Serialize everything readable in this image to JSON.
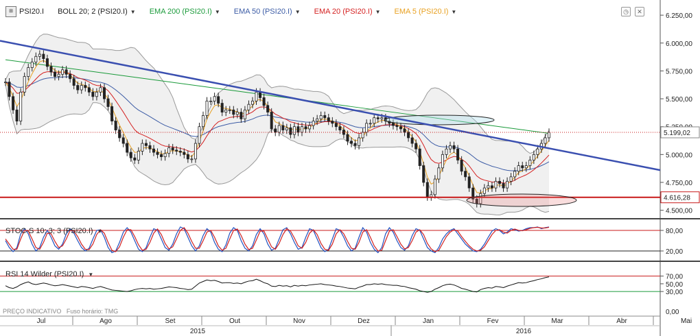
{
  "toolbar": {
    "symbol": "PSI20.I",
    "indicators": [
      {
        "label": "BOLL 20; 2 (PSI20.I)",
        "color": "#222222"
      },
      {
        "label": "EMA 200 (PSI20.I)",
        "color": "#1a9a3a"
      },
      {
        "label": "EMA 50 (PSI20.I)",
        "color": "#3b5ba5"
      },
      {
        "label": "EMA 20 (PSI20.I)",
        "color": "#d42020"
      },
      {
        "label": "EMA 5 (PSI20.I)",
        "color": "#e8a020"
      }
    ]
  },
  "icons": [
    "clock-icon",
    "close-icon"
  ],
  "panels": {
    "stoch_title": "STOC-S 10; 3; 3 (PSI20.I)",
    "rsi_title": "RSI 14 Wilder (PSI20.I)"
  },
  "footer": {
    "label": "PREÇO INDICATIVO",
    "timezone": "Fuso horário: TMG"
  },
  "chart_data": [
    {
      "type": "candlestick",
      "title": "PSI20.I",
      "price_axis_ticks": [
        "6.250,00",
        "6.000,00",
        "5.750,00",
        "5.500,00",
        "5.250,00",
        "5.000,00",
        "4.750,00",
        "4.500,00"
      ],
      "ylim": [
        4430,
        6300
      ],
      "current_price_label": "5.199,02",
      "current_price": 5199.02,
      "horizontal_line_label": "4.616,28",
      "horizontal_line": 4616.28,
      "x_month_labels": [
        "Jul",
        "Ago",
        "Set",
        "Out",
        "Nov",
        "Dez",
        "Jan",
        "Fev",
        "Mar",
        "Abr",
        "Mai"
      ],
      "x_year_labels": [
        "2015",
        "2016"
      ],
      "trendline": {
        "from": {
          "month_index": 0,
          "value": 6020
        },
        "to": {
          "month_index": 10.3,
          "value": 4860
        }
      },
      "series_colors": {
        "ema200": "#1a9a3a",
        "ema50": "#3b5ba5",
        "ema20": "#d42020",
        "ema5": "#e8a020",
        "bollinger": "#999999"
      },
      "closes": [
        5650,
        5520,
        5400,
        5300,
        5560,
        5700,
        5780,
        5830,
        5880,
        5900,
        5860,
        5790,
        5740,
        5700,
        5720,
        5760,
        5720,
        5680,
        5620,
        5580,
        5620,
        5600,
        5560,
        5520,
        5560,
        5600,
        5500,
        5430,
        5300,
        5220,
        5150,
        5100,
        5020,
        4970,
        4950,
        5030,
        5100,
        5080,
        5050,
        5020,
        5000,
        4980,
        5010,
        5060,
        5040,
        5030,
        5020,
        5000,
        4960,
        4960,
        5100,
        5250,
        5350,
        5480,
        5480,
        5520,
        5460,
        5380,
        5400,
        5400,
        5360,
        5380,
        5320,
        5400,
        5450,
        5480,
        5560,
        5510,
        5440,
        5380,
        5230,
        5200,
        5260,
        5220,
        5240,
        5180,
        5250,
        5200,
        5250,
        5230,
        5260,
        5300,
        5320,
        5350,
        5330,
        5300,
        5280,
        5250,
        5220,
        5180,
        5120,
        5100,
        5080,
        5150,
        5200,
        5280,
        5280,
        5330,
        5320,
        5330,
        5300,
        5280,
        5260,
        5250,
        5230,
        5200,
        5150,
        5100,
        5050,
        4900,
        4750,
        4620,
        4640,
        4780,
        4880,
        5000,
        5050,
        5080,
        5050,
        4950,
        4850,
        4800,
        4700,
        4600,
        4560,
        4650,
        4700,
        4720,
        4700,
        4760,
        4740,
        4700,
        4760,
        4800,
        4850,
        4900,
        4880,
        4900,
        4950,
        5000,
        5050,
        5100,
        5150,
        5199
      ]
    },
    {
      "type": "line",
      "title": "STOC-S 10; 3; 3 (PSI20.I)",
      "ticks": [
        "80,00",
        "20,00"
      ],
      "levels": [
        80,
        20
      ],
      "series": [
        {
          "name": "",
          "color": "#2050c0",
          "values": [
            50,
            30,
            18,
            30,
            70,
            85,
            70,
            40,
            20,
            30,
            60,
            80,
            60,
            35,
            25,
            40,
            70,
            85,
            72,
            50,
            30,
            20,
            28,
            55,
            80,
            82,
            60,
            30,
            15,
            20,
            45,
            75,
            88,
            75,
            50,
            25,
            18,
            30,
            60,
            85,
            80,
            55,
            30,
            22,
            40,
            70,
            90,
            85,
            60,
            35,
            20,
            35,
            65,
            85,
            75,
            45,
            25,
            18,
            38,
            72,
            88,
            80,
            50,
            28,
            20,
            35,
            68,
            85,
            70,
            40,
            22,
            28,
            55,
            82,
            88,
            70,
            45,
            25,
            30,
            60,
            85,
            80,
            55,
            30,
            18,
            25,
            55,
            85,
            80,
            60,
            35,
            20,
            28,
            60,
            88,
            75,
            45,
            25,
            15,
            30,
            70,
            88,
            75,
            50,
            30,
            22,
            35,
            65,
            85,
            80,
            55,
            30,
            20,
            15,
            30,
            55,
            70,
            80,
            85,
            70,
            55,
            40,
            30,
            20,
            18,
            25,
            40,
            60,
            78,
            85,
            80,
            70,
            75,
            85,
            82,
            78,
            80,
            85,
            88,
            88,
            90,
            85,
            88,
            90
          ]
        },
        {
          "name": "",
          "color": "#d02020",
          "values": [
            55,
            40,
            25,
            25,
            55,
            80,
            78,
            55,
            30,
            25,
            45,
            72,
            70,
            48,
            30,
            35,
            55,
            80,
            78,
            62,
            40,
            25,
            24,
            40,
            68,
            82,
            72,
            45,
            22,
            18,
            32,
            60,
            82,
            82,
            62,
            38,
            22,
            25,
            45,
            72,
            84,
            68,
            42,
            26,
            32,
            55,
            80,
            88,
            72,
            48,
            28,
            28,
            50,
            75,
            80,
            60,
            35,
            22,
            28,
            55,
            80,
            84,
            65,
            40,
            24,
            28,
            52,
            78,
            78,
            55,
            32,
            25,
            42,
            68,
            85,
            78,
            58,
            35,
            28,
            45,
            72,
            82,
            68,
            42,
            25,
            22,
            40,
            70,
            82,
            70,
            48,
            28,
            25,
            45,
            75,
            82,
            60,
            35,
            20,
            22,
            50,
            78,
            82,
            62,
            40,
            26,
            30,
            50,
            75,
            82,
            68,
            42,
            26,
            18,
            22,
            42,
            62,
            75,
            82,
            78,
            62,
            48,
            35,
            25,
            20,
            22,
            32,
            50,
            68,
            80,
            82,
            75,
            72,
            80,
            84,
            80,
            79,
            82,
            86,
            88,
            89,
            87,
            87,
            89
          ]
        }
      ]
    },
    {
      "type": "line",
      "title": "RSI 14 Wilder (PSI20.I)",
      "ticks": [
        "70,00",
        "50,00",
        "30,00",
        "0,00"
      ],
      "levels": [
        70,
        30
      ],
      "series": [
        {
          "name": "",
          "color": "#111111",
          "values": [
            45,
            40,
            38,
            42,
            48,
            52,
            55,
            50,
            48,
            50,
            52,
            50,
            47,
            45,
            46,
            48,
            46,
            44,
            42,
            40,
            43,
            42,
            40,
            38,
            41,
            43,
            40,
            37,
            34,
            33,
            32,
            31,
            30,
            32,
            35,
            37,
            38,
            37,
            38,
            36,
            37,
            38,
            40,
            42,
            41,
            40,
            38,
            37,
            35,
            36,
            44,
            52,
            56,
            60,
            58,
            59,
            56,
            52,
            53,
            53,
            51,
            52,
            50,
            54,
            57,
            58,
            62,
            58,
            53,
            50,
            44,
            43,
            46,
            44,
            45,
            42,
            46,
            44,
            46,
            45,
            47,
            48,
            49,
            50,
            48,
            47,
            46,
            44,
            43,
            41,
            39,
            38,
            37,
            41,
            44,
            48,
            48,
            50,
            49,
            50,
            48,
            47,
            46,
            46,
            44,
            43,
            40,
            38,
            36,
            32,
            30,
            28,
            30,
            36,
            40,
            45,
            48,
            49,
            47,
            43,
            38,
            36,
            33,
            30,
            29,
            35,
            38,
            40,
            39,
            43,
            42,
            40,
            44,
            47,
            50,
            53,
            52,
            53,
            56,
            58,
            61,
            63,
            66,
            68
          ]
        }
      ]
    }
  ]
}
